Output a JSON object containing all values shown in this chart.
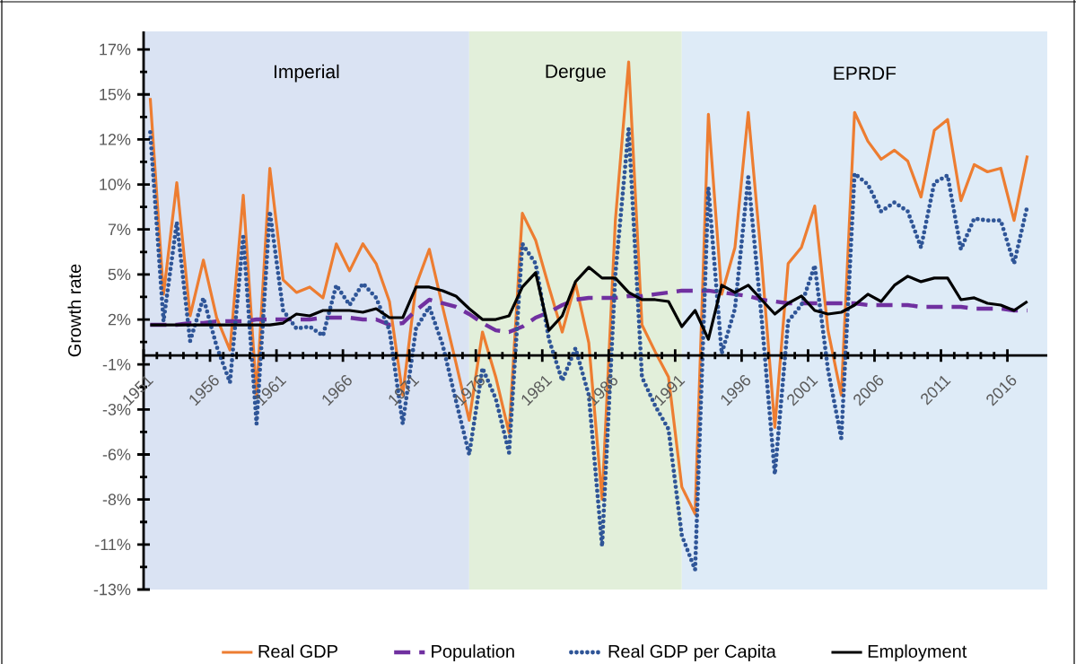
{
  "chart_data": {
    "type": "line",
    "ylabel": "Growth rate",
    "x": [
      1951,
      1952,
      1953,
      1954,
      1955,
      1956,
      1957,
      1958,
      1959,
      1960,
      1961,
      1962,
      1963,
      1964,
      1965,
      1966,
      1967,
      1968,
      1969,
      1970,
      1971,
      1972,
      1973,
      1974,
      1975,
      1976,
      1977,
      1978,
      1979,
      1980,
      1981,
      1982,
      1983,
      1984,
      1985,
      1986,
      1987,
      1988,
      1989,
      1990,
      1991,
      1992,
      1993,
      1994,
      1995,
      1996,
      1997,
      1998,
      1999,
      2000,
      2001,
      2002,
      2003,
      2004,
      2005,
      2006,
      2007,
      2008,
      2009,
      2010,
      2011,
      2012,
      2013,
      2014,
      2015,
      2016,
      2017
    ],
    "series": [
      {
        "name": "Real GDP",
        "color": "#ed7d31",
        "line_style": "solid",
        "values": [
          14.3,
          3.4,
          9.6,
          2.2,
          5.3,
          2.1,
          0.3,
          8.9,
          -2.2,
          10.4,
          4.2,
          3.5,
          3.8,
          3.2,
          6.2,
          4.7,
          6.2,
          5.1,
          3.0,
          -2.2,
          3.9,
          5.9,
          2.7,
          -0.4,
          -3.6,
          1.3,
          -1.2,
          -4.3,
          7.9,
          6.4,
          3.8,
          1.3,
          4.0,
          0.7,
          -8.0,
          7.5,
          16.3,
          1.7,
          0.2,
          -1.2,
          -7.3,
          -8.8,
          13.4,
          3.4,
          6.0,
          13.5,
          5.3,
          -4.0,
          5.1,
          6.0,
          8.3,
          1.4,
          -2.2,
          13.5,
          11.9,
          10.9,
          11.4,
          10.8,
          8.8,
          12.5,
          13.1,
          8.6,
          10.6,
          10.2,
          10.4,
          7.5,
          11.1
        ]
      },
      {
        "name": "Population",
        "color": "#7030a0",
        "line_style": "dashed",
        "values": [
          1.7,
          1.7,
          1.7,
          1.8,
          1.8,
          1.9,
          1.9,
          1.9,
          2.0,
          2.0,
          2.0,
          2.0,
          2.0,
          2.1,
          2.1,
          2.1,
          2.0,
          2.0,
          1.7,
          1.8,
          2.5,
          3.1,
          2.9,
          2.7,
          2.3,
          1.8,
          1.4,
          1.3,
          1.6,
          2.1,
          2.4,
          2.8,
          3.1,
          3.2,
          3.2,
          3.2,
          3.3,
          3.3,
          3.4,
          3.5,
          3.6,
          3.6,
          3.6,
          3.5,
          3.4,
          3.3,
          3.1,
          3.0,
          2.9,
          2.9,
          2.9,
          2.9,
          2.9,
          2.9,
          2.8,
          2.8,
          2.8,
          2.8,
          2.7,
          2.7,
          2.7,
          2.7,
          2.6,
          2.6,
          2.6,
          2.5,
          2.5
        ]
      },
      {
        "name": "Real GDP per Capita",
        "color": "#2f5597",
        "line_style": "dotted",
        "values": [
          12.4,
          1.9,
          7.4,
          0.8,
          3.2,
          0.5,
          -1.5,
          6.6,
          -3.8,
          8.0,
          2.5,
          1.5,
          1.6,
          1.1,
          3.9,
          2.8,
          4.0,
          3.2,
          1.4,
          -3.8,
          1.5,
          2.7,
          0.6,
          -2.5,
          -5.5,
          -0.7,
          -2.4,
          -5.4,
          6.2,
          5.1,
          0.9,
          -1.4,
          0.4,
          -2.2,
          -10.6,
          4.5,
          12.6,
          -1.2,
          -2.8,
          -4.1,
          -10.0,
          -11.9,
          9.3,
          0.1,
          2.6,
          9.9,
          2.1,
          -6.6,
          1.9,
          2.8,
          5.0,
          -0.8,
          -4.6,
          10.1,
          9.5,
          8.0,
          8.5,
          8.0,
          6.0,
          9.6,
          10.0,
          5.9,
          7.6,
          7.5,
          7.5,
          5.1,
          8.3
        ]
      },
      {
        "name": "Employment",
        "color": "#000000",
        "line_style": "solid",
        "values": [
          1.7,
          1.7,
          1.7,
          1.7,
          1.7,
          1.7,
          1.7,
          1.7,
          1.7,
          1.7,
          1.8,
          2.3,
          2.2,
          2.5,
          2.5,
          2.5,
          2.4,
          2.6,
          2.1,
          2.1,
          3.8,
          3.8,
          3.6,
          3.3,
          2.6,
          2.0,
          2.0,
          2.2,
          3.8,
          4.6,
          1.4,
          2.2,
          4.1,
          4.9,
          4.3,
          4.3,
          3.5,
          3.1,
          3.1,
          3.0,
          1.6,
          2.5,
          0.9,
          3.9,
          3.5,
          3.9,
          3.1,
          2.3,
          2.9,
          3.3,
          2.5,
          2.3,
          2.4,
          2.8,
          3.4,
          3.0,
          3.9,
          4.4,
          4.1,
          4.3,
          4.3,
          3.1,
          3.2,
          2.9,
          2.8,
          2.5,
          3.0
        ]
      }
    ],
    "xlim": [
      1950.5,
      2018.5
    ],
    "xticks": [
      {
        "value": 1950.5,
        "label": "1951"
      },
      {
        "value": 1955.5,
        "label": "1956"
      },
      {
        "value": 1960.5,
        "label": "1961"
      },
      {
        "value": 1965.5,
        "label": "1966"
      },
      {
        "value": 1970.5,
        "label": "1971"
      },
      {
        "value": 1975.5,
        "label": "1976"
      },
      {
        "value": 1980.5,
        "label": "1981"
      },
      {
        "value": 1985.5,
        "label": "1986"
      },
      {
        "value": 1990.5,
        "label": "1991"
      },
      {
        "value": 1995.5,
        "label": "1996"
      },
      {
        "value": 2000.5,
        "label": "2001"
      },
      {
        "value": 2005.5,
        "label": "2006"
      },
      {
        "value": 2010.5,
        "label": "2011"
      },
      {
        "value": 2015.5,
        "label": "2016"
      }
    ],
    "ylim": [
      -13,
      18
    ],
    "yticks": [
      {
        "value": -13,
        "label": "-13%"
      },
      {
        "value": -10.5,
        "label": "-11%"
      },
      {
        "value": -8,
        "label": "-8%"
      },
      {
        "value": -5.5,
        "label": "-6%"
      },
      {
        "value": -3,
        "label": "-3%"
      },
      {
        "value": -0.5,
        "label": "-1%"
      },
      {
        "value": 2,
        "label": "2%"
      },
      {
        "value": 4.5,
        "label": "5%"
      },
      {
        "value": 7,
        "label": "7%"
      },
      {
        "value": 9.5,
        "label": "10%"
      },
      {
        "value": 12,
        "label": "12%"
      },
      {
        "value": 14.5,
        "label": "15%"
      },
      {
        "value": 17,
        "label": "17%"
      }
    ],
    "bands": [
      {
        "axis": "x",
        "from": 1950.5,
        "to": 1975,
        "label": "Imperial",
        "color": "#dae3f3"
      },
      {
        "axis": "x",
        "from": 1975,
        "to": 1991,
        "label": "Dergue",
        "color": "#e2efda"
      },
      {
        "axis": "x",
        "from": 1991,
        "to": 2018.5,
        "label": "EPRDF",
        "color": "#deebf7"
      }
    ],
    "grid": false,
    "legend": "bottom"
  }
}
